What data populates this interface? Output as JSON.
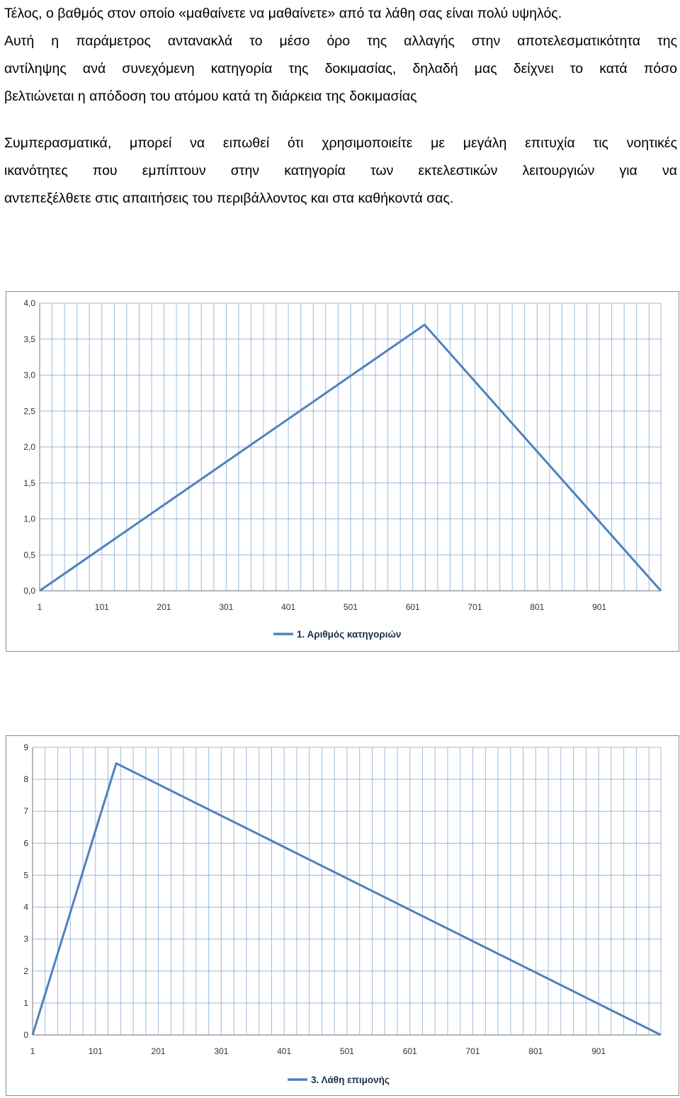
{
  "text": {
    "p1": [
      "Τέλος, ο βαθμός στον οποίο «μαθαίνετε να μαθαίνετε» από τα λάθη  σας είναι πολύ υψηλός.",
      "Αυτή η παράμετρος αντανακλά το μέσο όρο της αλλαγής στην αποτελεσματικότητα της",
      "αντίληψης ανά συνεχόμενη κατηγορία της δοκιμασίας, δηλαδή μας δείχνει το κατά πόσο",
      "βελτιώνεται η απόδοση του ατόμου κατά τη διάρκεια της δοκιμασίας"
    ],
    "p2": [
      "Συμπερασματικά, μπορεί να ειπωθεί ότι χρησιμοποιείτε με μεγάλη επιτυχία τις νοητικές",
      "ικανότητες που εμπίπτουν στην κατηγορία των εκτελεστικών λειτουργιών για να",
      "αντεπεξέλθετε στις απαιτήσεις του περιβάλλοντος και στα καθήκοντά σας."
    ]
  },
  "chart_data": [
    {
      "type": "line",
      "title": "",
      "xlabel": "",
      "ylabel": "",
      "xlim": [
        1,
        1000
      ],
      "ylim": [
        0,
        4
      ],
      "y_ticks": [
        "0,0",
        "0,5",
        "1,0",
        "1,5",
        "2,0",
        "2,5",
        "3,0",
        "3,5",
        "4,0"
      ],
      "x_ticks": [
        "1",
        "101",
        "201",
        "301",
        "401",
        "501",
        "601",
        "701",
        "801",
        "901"
      ],
      "grid": true,
      "legend_position": "bottom",
      "series": [
        {
          "name": "1. Αριθμός κατηγοριών",
          "color": "#4f81bd",
          "x": [
            1,
            620,
            1000
          ],
          "y": [
            0,
            3.7,
            0
          ]
        }
      ]
    },
    {
      "type": "line",
      "title": "",
      "xlabel": "",
      "ylabel": "",
      "xlim": [
        1,
        1000
      ],
      "ylim": [
        0,
        9
      ],
      "y_ticks": [
        "0",
        "1",
        "2",
        "3",
        "4",
        "5",
        "6",
        "7",
        "8",
        "9"
      ],
      "x_ticks": [
        "1",
        "101",
        "201",
        "301",
        "401",
        "501",
        "601",
        "701",
        "801",
        "901"
      ],
      "grid": true,
      "legend_position": "bottom",
      "series": [
        {
          "name": "3. Λάθη επιμονής",
          "color": "#4f81bd",
          "x": [
            1,
            134,
            1000
          ],
          "y": [
            0,
            8.5,
            0
          ]
        }
      ]
    }
  ]
}
